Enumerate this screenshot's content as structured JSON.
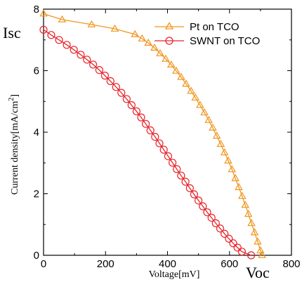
{
  "chart_data": {
    "type": "line",
    "xlabel": "Voltage[mV]",
    "ylabel": "Current density[mA/cm",
    "ylabel_sup": "2",
    "ylabel_tail": "]",
    "xlim": [
      0,
      800
    ],
    "ylim": [
      0,
      8
    ],
    "xticks": [
      0,
      200,
      400,
      600,
      800
    ],
    "yticks": [
      0,
      2,
      4,
      6,
      8
    ],
    "xtick_labels": [
      "0",
      "200",
      "400",
      "600",
      "800"
    ],
    "ytick_labels": [
      "0",
      "2",
      "4",
      "6",
      "8"
    ],
    "grid": false,
    "legend_position": "top-right",
    "annotations": {
      "isc": "Isc",
      "voc": "Voc"
    },
    "series": [
      {
        "name": "Pt on TCO",
        "color": "#f0961e",
        "marker": "triangle",
        "points": [
          [
            0,
            7.85
          ],
          [
            60,
            7.66
          ],
          [
            155,
            7.5
          ],
          [
            230,
            7.36
          ],
          [
            295,
            7.18
          ],
          [
            318,
            7.04
          ],
          [
            338,
            6.9
          ],
          [
            358,
            6.74
          ],
          [
            376,
            6.56
          ],
          [
            394,
            6.38
          ],
          [
            412,
            6.19
          ],
          [
            428,
            5.99
          ],
          [
            444,
            5.79
          ],
          [
            460,
            5.57
          ],
          [
            476,
            5.34
          ],
          [
            490,
            5.12
          ],
          [
            505,
            4.88
          ],
          [
            519,
            4.64
          ],
          [
            533,
            4.39
          ],
          [
            546,
            4.14
          ],
          [
            559,
            3.88
          ],
          [
            572,
            3.61
          ],
          [
            584,
            3.34
          ],
          [
            596,
            3.07
          ],
          [
            608,
            2.79
          ],
          [
            619,
            2.5
          ],
          [
            630,
            2.21
          ],
          [
            641,
            1.92
          ],
          [
            651,
            1.63
          ],
          [
            661,
            1.34
          ],
          [
            671,
            1.04
          ],
          [
            681,
            0.74
          ],
          [
            691,
            0.44
          ],
          [
            700,
            0.15
          ],
          [
            705,
            0.0
          ]
        ]
      },
      {
        "name": "SWNT on TCO",
        "color": "#e8252b",
        "marker": "circle",
        "points": [
          [
            0,
            7.33
          ],
          [
            25,
            7.16
          ],
          [
            50,
            7.0
          ],
          [
            75,
            6.84
          ],
          [
            98,
            6.68
          ],
          [
            120,
            6.52
          ],
          [
            140,
            6.36
          ],
          [
            160,
            6.2
          ],
          [
            180,
            6.02
          ],
          [
            198,
            5.84
          ],
          [
            216,
            5.66
          ],
          [
            234,
            5.47
          ],
          [
            251,
            5.28
          ],
          [
            268,
            5.08
          ],
          [
            284,
            4.88
          ],
          [
            300,
            4.68
          ],
          [
            315,
            4.48
          ],
          [
            330,
            4.27
          ],
          [
            345,
            4.06
          ],
          [
            360,
            3.85
          ],
          [
            374,
            3.64
          ],
          [
            388,
            3.43
          ],
          [
            402,
            3.22
          ],
          [
            416,
            3.01
          ],
          [
            430,
            2.8
          ],
          [
            444,
            2.59
          ],
          [
            458,
            2.39
          ],
          [
            472,
            2.18
          ],
          [
            486,
            1.98
          ],
          [
            500,
            1.78
          ],
          [
            514,
            1.59
          ],
          [
            528,
            1.4
          ],
          [
            542,
            1.22
          ],
          [
            556,
            1.04
          ],
          [
            570,
            0.87
          ],
          [
            584,
            0.7
          ],
          [
            598,
            0.54
          ],
          [
            612,
            0.39
          ],
          [
            626,
            0.25
          ],
          [
            640,
            0.12
          ],
          [
            670,
            0.0
          ]
        ]
      }
    ]
  }
}
